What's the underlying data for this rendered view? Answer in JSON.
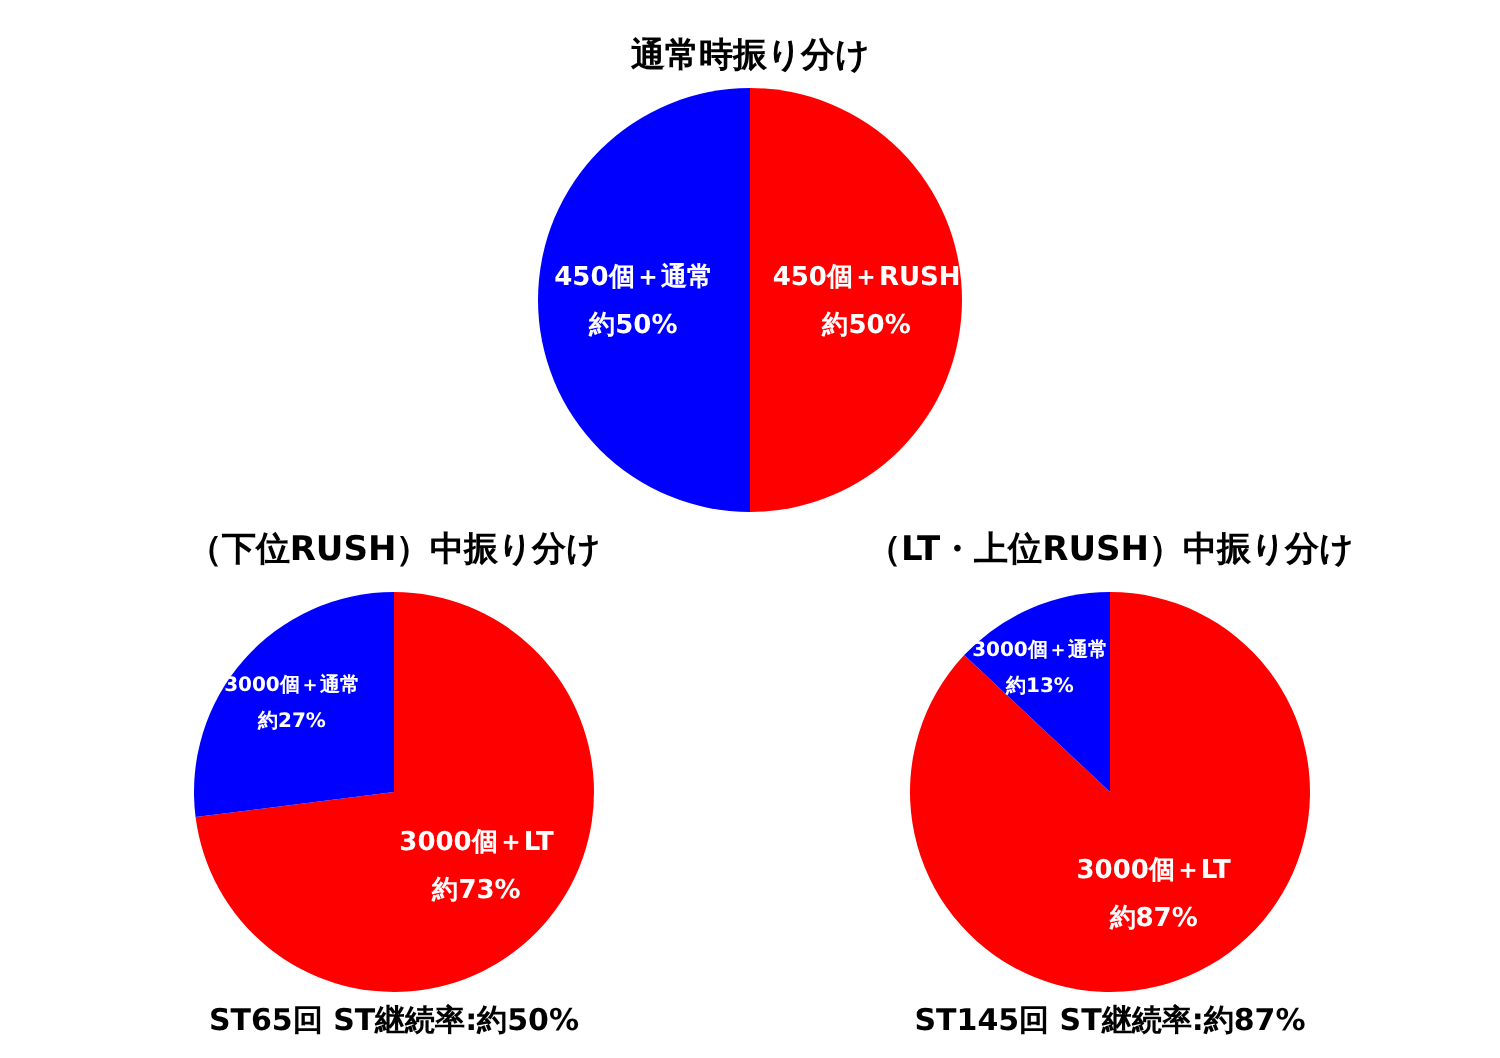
{
  "chart_data": [
    {
      "type": "pie",
      "title": "通常時振り分け",
      "categories": [
        "450個＋RUSH",
        "450個＋通常"
      ],
      "values": [
        50,
        50
      ],
      "colors": [
        "#ff0000",
        "#0000ff"
      ],
      "value_labels": [
        "約50%",
        "約50%"
      ]
    },
    {
      "type": "pie",
      "title": "（下位RUSH）中振り分け",
      "categories": [
        "3000個＋LT",
        "3000個＋通常"
      ],
      "values": [
        73,
        27
      ],
      "colors": [
        "#ff0000",
        "#0000ff"
      ],
      "value_labels": [
        "約73%",
        "約27%"
      ],
      "annotations": [
        "ST65回 ST継続率:約50%"
      ]
    },
    {
      "type": "pie",
      "title": "（LT・上位RUSH）中振り分け",
      "categories": [
        "3000個＋LT",
        "3000個＋通常"
      ],
      "values": [
        87,
        13
      ],
      "colors": [
        "#ff0000",
        "#0000ff"
      ],
      "value_labels": [
        "約87%",
        "約13%"
      ],
      "annotations": [
        "ST145回 ST継続率:約87%"
      ]
    }
  ]
}
